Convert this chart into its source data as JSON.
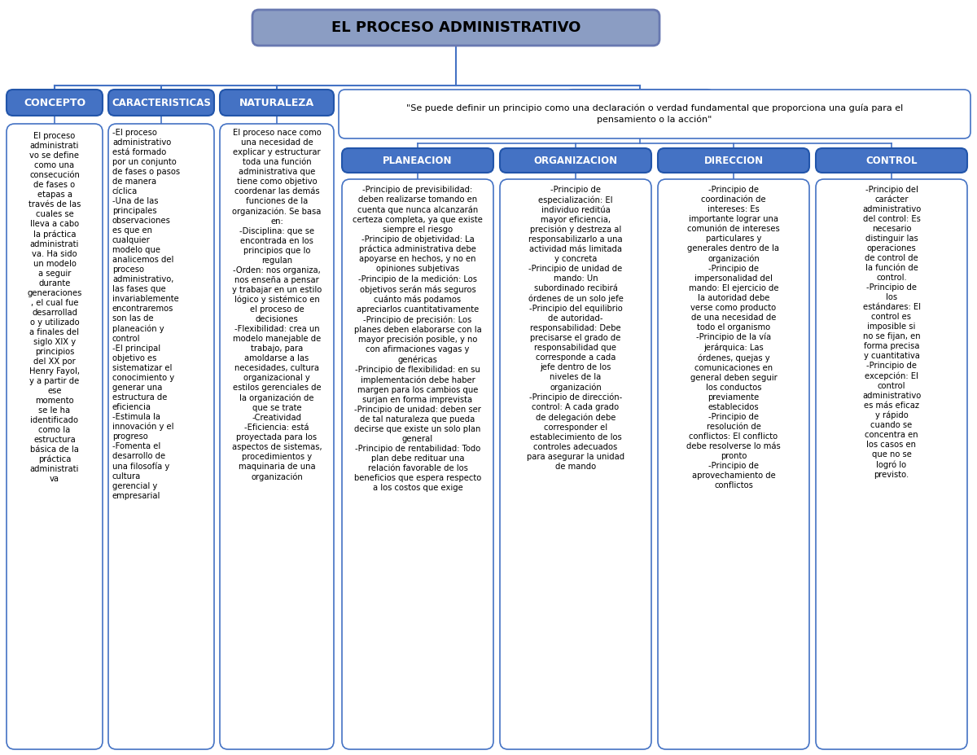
{
  "title": "EL PROCESO ADMINISTRATIVO",
  "title_box_color": "#8B9DC3",
  "title_text_color": "#000000",
  "level1_box_color": "#4472C4",
  "level1_text_color": "#FFFFFF",
  "level2_box_color": "#FFFFFF",
  "level2_border_color": "#4472C4",
  "level2_text_color": "#000000",
  "principios_text_color": "#FFFFFF",
  "principles_quote": "\"Se puede definir un principio como una declaración o verdad fundamental que proporciona una guía para el\npensamiento o la acción\"",
  "quote_box_color": "#FFFFFF",
  "quote_border_color": "#4472C4",
  "sub_principios_box_color": "#4472C4",
  "sub_principios_text_color": "#FFFFFF",
  "columns": [
    {
      "header": "CONCEPTO",
      "content": "El proceso\nadministrati\nvo se define\ncomo una\nconsecución\nde fases o\netapas a\ntravés de las\ncuales se\nlleva a cabo\nla práctica\nadministrati\nva. Ha sido\nun modelo\na seguir\ndurante\ngeneraciones\n, el cual fue\ndesarrollad\no y utilizado\na finales del\nsiglo XIX y\nprincipios\ndel XX por\nHenry Fayol,\ny a partir de\nese\nmomento\nse le ha\nidentificado\ncomo la\nestructura\nbásica de la\npráctica\nadministrati\nva"
    },
    {
      "header": "CARACTERISTICAS",
      "content": "-El proceso\nadministrativo\nestá formado\npor un conjunto\nde fases o pasos\nde manera\ncíclica\n-Una de las\nprincipales\nobservaciones\nes que en\ncualquier\nmodelo que\nanalicemos del\nproceso\nadministrativo,\nlas fases que\ninvariablemente\nencontraremos\nson las de\nplaneación y\ncontrol\n-El principal\nobjetivo es\nsistematizar el\nconocimiento y\ngenerar una\nestructura de\neficiencia\n-Estimula la\ninnovación y el\nprogreso\n-Fomenta el\ndesarrollo de\nuna filosofía y\ncultura\ngerencial y\nempresarial"
    },
    {
      "header": "NATURALEZA",
      "content": "El proceso nace como\nuna necesidad de\nexplicar y estructurar\ntoda una función\nadministrativa que\ntiene como objetivo\ncoordenar las demás\nfunciones de la\norganización. Se basa\nen:\n-Disciplina: que se\nencontrada en los\nprincipios que lo\nregulan\n-Orden: nos organiza,\nnos enseña a pensar\ny trabajar en un estilo\nlógico y sistémico en\nel proceso de\ndecisiones\n-Flexibilidad: crea un\nmodelo manejable de\ntrabajo, para\namoldarse a las\nnecesidades, cultura\norganizacional y\nestilos gerenciales de\nla organización de\nque se trate\n-Creatividad\n-Eficiencia: está\nproyectada para los\naspectos de sistemas,\nprocedimientos y\nmaquinaria de una\norganización"
    }
  ],
  "principios_columns": [
    {
      "header": "PLANEACION",
      "content": "-Principio de previsibilidad:\ndeben realizarse tomando en\ncuenta que nunca alcanzarán\ncerteza completa, ya que existe\nsiempre el riesgo\n-Principio de objetividad: La\npráctica administrativa debe\napoyarse en hechos, y no en\nopiniones subjetivas\n-Principio de la medición: Los\nobjetivos serán más seguros\ncuánto más podamos\napreciarlos cuantitativamente\n-Principio de precisión: Los\nplanes deben elaborarse con la\nmayor precisión posible, y no\ncon afirmaciones vagas y\ngenéricas\n-Principio de flexibilidad: en su\nimplementación debe haber\nmargen para los cambios que\nsurjan en forma imprevista\n-Principio de unidad: deben ser\nde tal naturaleza que pueda\ndecirse que existe un solo plan\ngeneral\n-Principio de rentabilidad: Todo\nplan debe redituar una\nrelación favorable de los\nbeneficios que espera respecto\na los costos que exige"
    },
    {
      "header": "ORGANIZACION",
      "content": "-Principio de\nespecialización: El\nindividuo reditúa\nmayor eficiencia,\nprecisión y destreza al\nresponsabilizarlo a una\nactividad más limitada\ny concreta\n-Principio de unidad de\nmando: Un\nsubordinado recibirá\nórdenes de un solo jefe\n-Principio del equilibrio\nde autoridad-\nresponsabilidad: Debe\nprecisarse el grado de\nresponsabilidad que\ncorresponde a cada\njefe dentro de los\nniveles de la\norganización\n-Principio de dirección-\ncontrol: A cada grado\nde delegación debe\ncorresponder el\nestablecimiento de los\ncontroles adecuados\npara asegurar la unidad\nde mando"
    },
    {
      "header": "DIRECCION",
      "content": "-Principio de\ncoordinación de\nintereses: Es\nimportante lograr una\ncomunión de intereses\nparticulares y\ngenerales dentro de la\norganización\n-Principio de\nimpersonalidad del\nmando: El ejercicio de\nla autoridad debe\nverse como producto\nde una necesidad de\ntodo el organismo\n-Principio de la vía\njerárquica: Las\nórdenes, quejas y\ncomunicaciones en\ngeneral deben seguir\nlos conductos\npreviamente\nestablecidos\n-Principio de\nresolución de\nconflictos: El conflicto\ndebe resolverse lo más\npronto\n-Principio de\naprovechamiento de\nconflictos"
    },
    {
      "header": "CONTROL",
      "content": "-Principio del\ncarácter\nadministrativo\ndel control: Es\nnecesario\ndistinguir las\noperaciones\nde control de\nla función de\ncontrol.\n-Principio de\nlos\nestándares: El\ncontrol es\nimposible si\nno se fijan, en\nforma precisa\ny cuantitativa\n-Principio de\nexcepción: El\ncontrol\nadministrativo\nes más eficaz\ny rápido\ncuando se\nconcentra en\nlos casos en\nque no se\nlogró lo\nprevisto."
    }
  ],
  "bg_color": "#FFFFFF",
  "line_color": "#4472C4"
}
